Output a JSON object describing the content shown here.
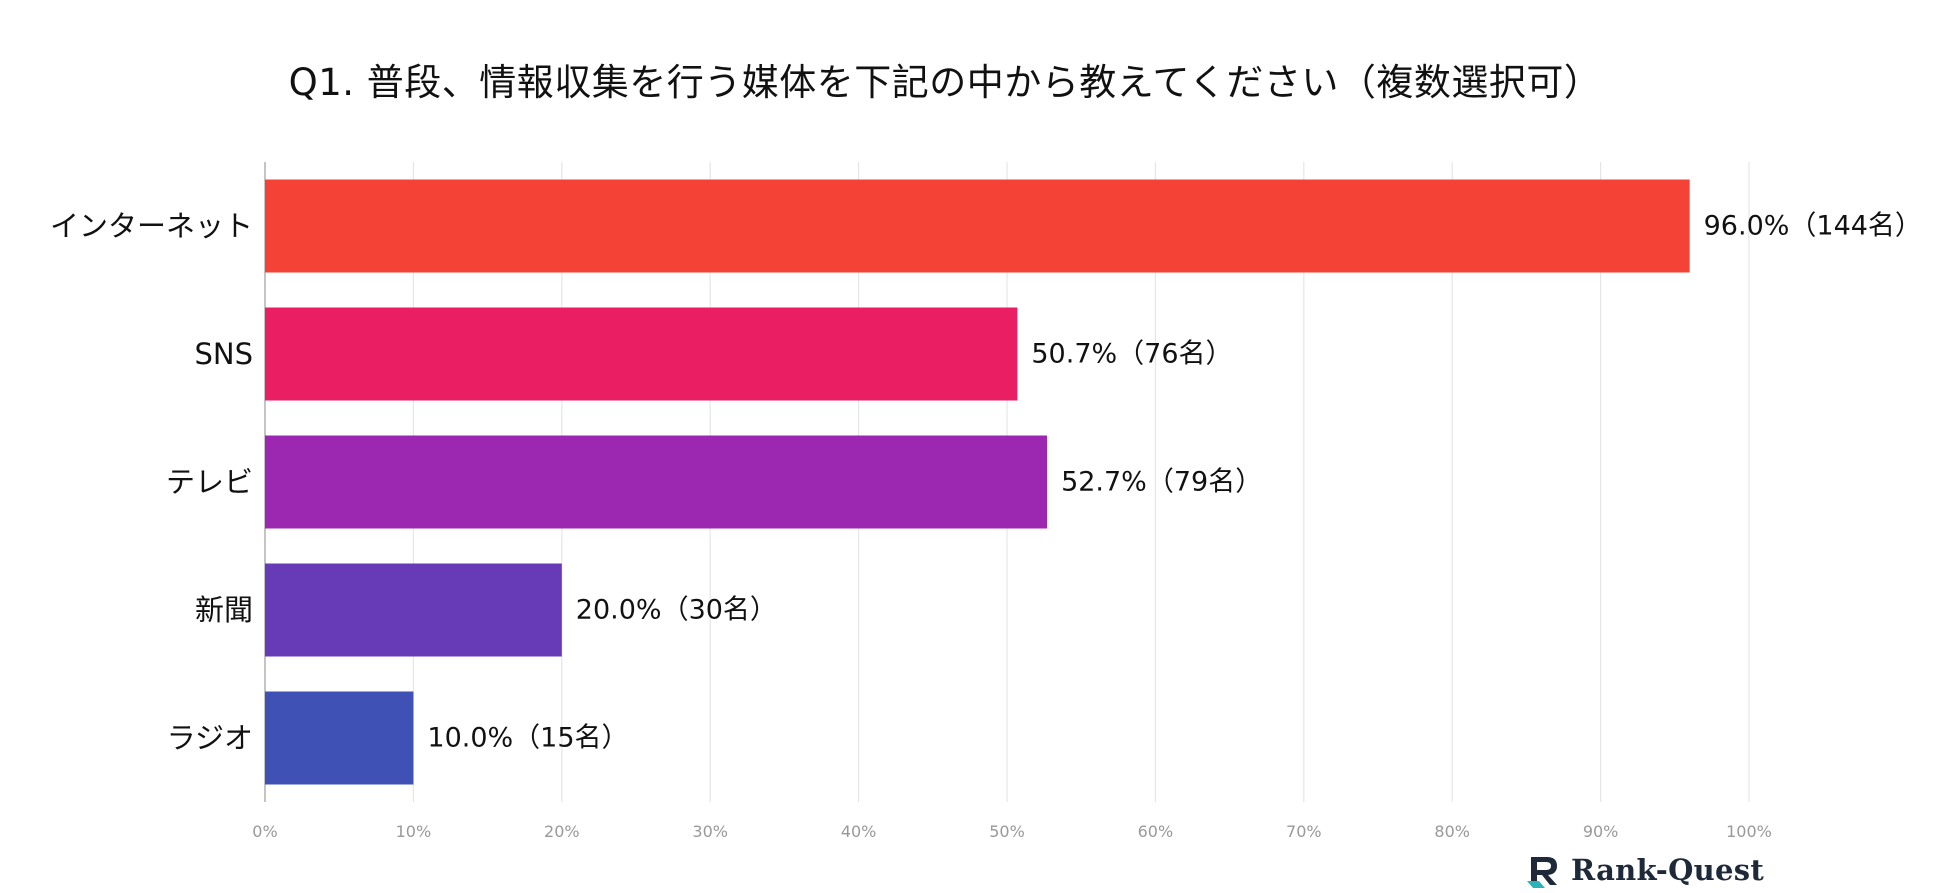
{
  "chart_data": {
    "type": "bar",
    "orientation": "horizontal",
    "title": "Q1. 普段、情報収集を行う媒体を下記の中から教えてください（複数選択可）",
    "categories": [
      "インターネット",
      "SNS",
      "テレビ",
      "新聞",
      "ラジオ"
    ],
    "values": [
      96.0,
      50.7,
      52.7,
      20.0,
      10.0
    ],
    "value_labels": [
      "96.0%（144名）",
      "50.7%（76名）",
      "52.7%（79名）",
      "20.0%（30名）",
      "10.0%（15名）"
    ],
    "colors": [
      "#f44336",
      "#e91e63",
      "#9c27b0",
      "#673ab7",
      "#3f51b5"
    ],
    "xlim": [
      0,
      100
    ],
    "xticks": [
      "0%",
      "10%",
      "20%",
      "30%",
      "40%",
      "50%",
      "60%",
      "70%",
      "80%",
      "90%",
      "100%"
    ],
    "grid": "vertical",
    "legend": "none"
  },
  "logo": {
    "text": "Rank-Quest",
    "icon": "rank-quest-logo-icon",
    "colors": [
      "#1e2a3a",
      "#2bb3b8"
    ]
  }
}
